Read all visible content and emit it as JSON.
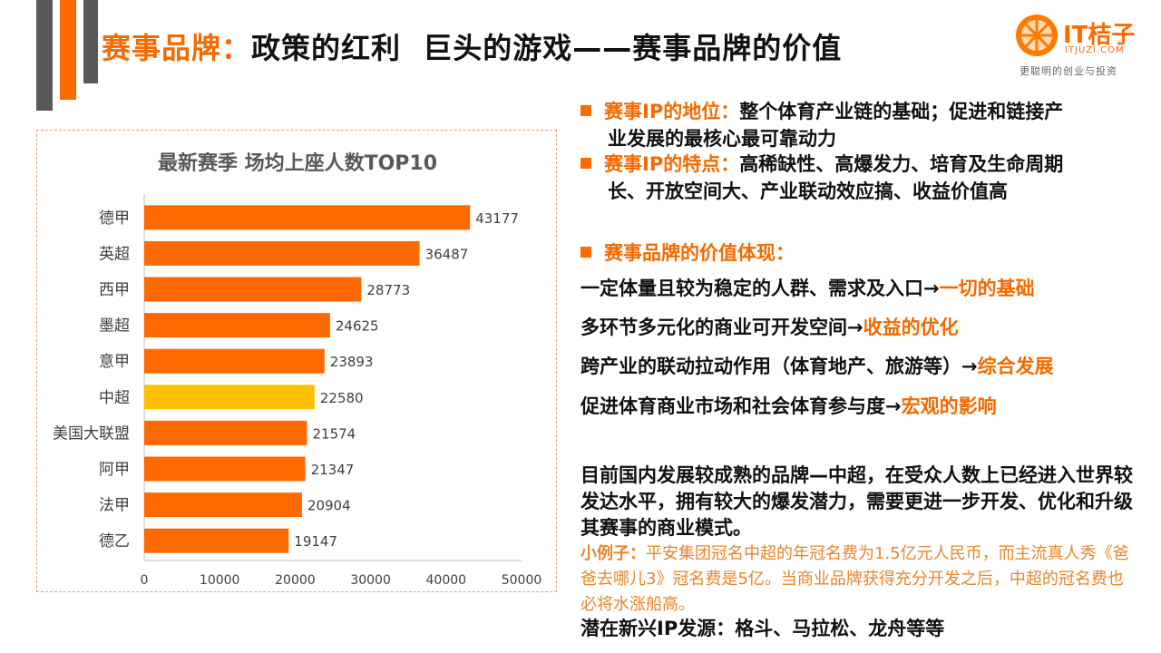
{
  "title": {
    "accent": "赛事品牌：",
    "rest": "政策的红利  巨头的游戏——赛事品牌的价值"
  },
  "logo": {
    "name": "IT桔子",
    "domain": "ITJUZI.COM",
    "slogan": "更聪明的创业与投资",
    "icon": "orange-slice-icon"
  },
  "colors": {
    "accent": "#ff6a00",
    "bar_default": "#ff6a00",
    "bar_highlight": "#ffc000",
    "deco_gray": "#595959"
  },
  "chart_data": {
    "type": "bar",
    "orientation": "horizontal",
    "title": "最新赛季 场均上座人数TOP10",
    "categories": [
      "德甲",
      "英超",
      "西甲",
      "墨超",
      "意甲",
      "中超",
      "美国大联盟",
      "阿甲",
      "法甲",
      "德乙"
    ],
    "values": [
      43177,
      36487,
      28773,
      24625,
      23893,
      22580,
      21574,
      21347,
      20904,
      19147
    ],
    "highlight": "中超",
    "xlim": [
      0,
      50000
    ],
    "xticks": [
      0,
      10000,
      20000,
      30000,
      40000,
      50000
    ],
    "xlabel": "",
    "ylabel": "",
    "grid": false,
    "data_labels": true
  },
  "points": [
    {
      "label": "赛事IP的地位：",
      "line1": "整个体育产业链的基础；促进和链接产",
      "line2": "业发展的最核心最可靠动力"
    },
    {
      "label": "赛事IP的特点：",
      "line1": "高稀缺性、高爆发力、培育及生命周期",
      "line2": "长、开放空间大、产业联动效应搞、收益价值高"
    },
    {
      "label": "赛事品牌的价值体现："
    }
  ],
  "value_lines": [
    {
      "text": "一定体量且较为稳定的人群、需求及入口→",
      "highlight": "一切的基础"
    },
    {
      "text": "多环节多元化的商业可开发空间→",
      "highlight": "收益的优化"
    },
    {
      "text": "跨产业的联动拉动作用（体育地产、旅游等）→",
      "highlight": "综合发展"
    },
    {
      "text": "促进体育商业市场和社会体育参与度→",
      "highlight": "宏观的影响"
    }
  ],
  "summary": "目前国内发展较成熟的品牌—中超，在受众人数上已经进入世界较发达水平，拥有较大的爆发潜力，需要更进一步开发、优化和升级其赛事的商业模式。",
  "example": {
    "label": "小例子：",
    "text": "平安集团冠名中超的年冠名费为1.5亿元人民币，而主流真人秀《爸爸去哪儿3》冠名费是5亿。当商业品牌获得充分开发之后，中超的冠名费也必将水涨船高。"
  },
  "emerging": "潜在新兴IP发源：格斗、马拉松、龙舟等等"
}
